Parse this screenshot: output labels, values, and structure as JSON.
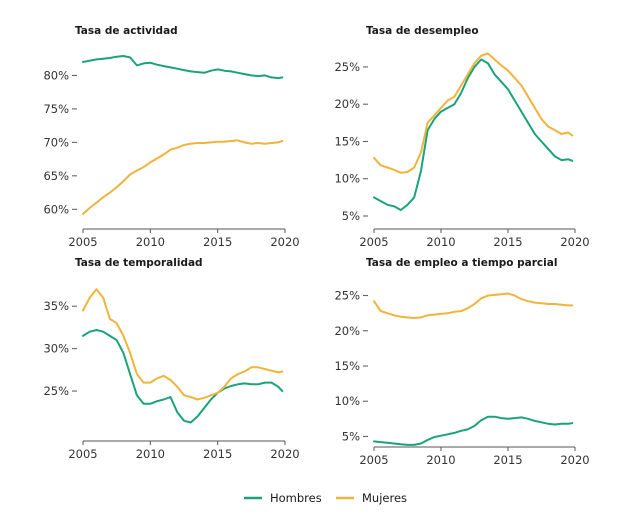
{
  "chart_data": [
    {
      "type": "line",
      "title": "Tasa de actividad",
      "xlim": [
        2005,
        2020
      ],
      "ylim": [
        59,
        83.5
      ],
      "yticks": [
        60,
        65,
        70,
        75,
        80
      ],
      "ytick_labels": [
        "60%",
        "65%",
        "70%",
        "75%",
        "80%"
      ],
      "xticks": [
        2005,
        2010,
        2015,
        2020
      ],
      "xtick_labels": [
        "2005",
        "2010",
        "2015",
        "2020"
      ],
      "series": [
        {
          "name": "Hombres",
          "color": "#1aa37a",
          "x": [
            2005.0,
            2005.5,
            2006.0,
            2006.5,
            2007.0,
            2007.5,
            2008.0,
            2008.5,
            2009.0,
            2009.5,
            2010.0,
            2010.5,
            2011.0,
            2011.5,
            2012.0,
            2012.5,
            2013.0,
            2013.5,
            2014.0,
            2014.5,
            2015.0,
            2015.5,
            2016.0,
            2016.5,
            2017.0,
            2017.5,
            2018.0,
            2018.5,
            2019.0,
            2019.5,
            2019.8
          ],
          "y": [
            82.0,
            82.2,
            82.4,
            82.5,
            82.6,
            82.8,
            82.9,
            82.7,
            81.5,
            81.8,
            81.9,
            81.6,
            81.4,
            81.2,
            81.0,
            80.8,
            80.6,
            80.5,
            80.4,
            80.7,
            80.9,
            80.7,
            80.6,
            80.4,
            80.2,
            80.0,
            79.9,
            80.0,
            79.7,
            79.6,
            79.7
          ]
        },
        {
          "name": "Mujeres",
          "color": "#f0b43c",
          "x": [
            2005.0,
            2005.5,
            2006.0,
            2006.5,
            2007.0,
            2007.5,
            2008.0,
            2008.5,
            2009.0,
            2009.5,
            2010.0,
            2010.5,
            2011.0,
            2011.5,
            2012.0,
            2012.5,
            2013.0,
            2013.5,
            2014.0,
            2014.5,
            2015.0,
            2015.5,
            2016.0,
            2016.5,
            2017.0,
            2017.5,
            2018.0,
            2018.5,
            2019.0,
            2019.5,
            2019.8
          ],
          "y": [
            59.3,
            60.2,
            61.0,
            61.8,
            62.5,
            63.3,
            64.2,
            65.2,
            65.8,
            66.3,
            67.0,
            67.6,
            68.2,
            68.9,
            69.2,
            69.6,
            69.8,
            69.9,
            69.9,
            70.0,
            70.1,
            70.1,
            70.2,
            70.3,
            70.0,
            69.8,
            69.9,
            69.8,
            69.9,
            70.0,
            70.2
          ]
        }
      ]
    },
    {
      "type": "line",
      "title": "Tasa de desempleo",
      "xlim": [
        2005,
        2020
      ],
      "ylim": [
        5,
        27
      ],
      "yticks": [
        5,
        10,
        15,
        20,
        25
      ],
      "ytick_labels": [
        "5%",
        "10%",
        "15%",
        "20%",
        "25%"
      ],
      "xticks": [
        2005,
        2010,
        2015,
        2020
      ],
      "xtick_labels": [
        "2005",
        "2010",
        "2015",
        "2020"
      ],
      "series": [
        {
          "name": "Hombres",
          "color": "#1aa37a",
          "x": [
            2005.0,
            2005.5,
            2006.0,
            2006.5,
            2007.0,
            2007.5,
            2008.0,
            2008.5,
            2009.0,
            2009.5,
            2010.0,
            2010.5,
            2011.0,
            2011.5,
            2012.0,
            2012.5,
            2013.0,
            2013.5,
            2014.0,
            2014.5,
            2015.0,
            2015.5,
            2016.0,
            2016.5,
            2017.0,
            2017.5,
            2018.0,
            2018.5,
            2019.0,
            2019.5,
            2019.8
          ],
          "y": [
            7.5,
            7.0,
            6.5,
            6.3,
            5.8,
            6.5,
            7.5,
            11.0,
            16.5,
            18.0,
            19.0,
            19.5,
            20.0,
            21.5,
            23.5,
            25.0,
            26.0,
            25.5,
            24.0,
            23.0,
            22.0,
            20.5,
            19.0,
            17.5,
            16.0,
            15.0,
            14.0,
            13.0,
            12.5,
            12.6,
            12.4
          ]
        },
        {
          "name": "Mujeres",
          "color": "#f0b43c",
          "x": [
            2005.0,
            2005.5,
            2006.0,
            2006.5,
            2007.0,
            2007.5,
            2008.0,
            2008.5,
            2009.0,
            2009.5,
            2010.0,
            2010.5,
            2011.0,
            2011.5,
            2012.0,
            2012.5,
            2013.0,
            2013.5,
            2014.0,
            2014.5,
            2015.0,
            2015.5,
            2016.0,
            2016.5,
            2017.0,
            2017.5,
            2018.0,
            2018.5,
            2019.0,
            2019.5,
            2019.8
          ],
          "y": [
            12.8,
            11.8,
            11.5,
            11.2,
            10.8,
            10.9,
            11.5,
            13.5,
            17.5,
            18.5,
            19.5,
            20.5,
            21.0,
            22.5,
            24.0,
            25.5,
            26.5,
            26.8,
            26.0,
            25.2,
            24.5,
            23.5,
            22.5,
            21.0,
            19.5,
            18.0,
            17.0,
            16.5,
            16.0,
            16.2,
            15.8
          ]
        }
      ]
    },
    {
      "type": "line",
      "title": "Tasa de temporalidad",
      "xlim": [
        2005,
        2020
      ],
      "ylim": [
        21,
        37.5
      ],
      "yticks": [
        25,
        30,
        35
      ],
      "ytick_labels": [
        "25%",
        "30%",
        "35%"
      ],
      "xticks": [
        2005,
        2010,
        2015,
        2020
      ],
      "xtick_labels": [
        "2005",
        "2010",
        "2015",
        "2020"
      ],
      "series": [
        {
          "name": "Hombres",
          "color": "#1aa37a",
          "x": [
            2005.0,
            2005.5,
            2006.0,
            2006.5,
            2007.0,
            2007.5,
            2008.0,
            2008.5,
            2009.0,
            2009.5,
            2010.0,
            2010.5,
            2011.0,
            2011.5,
            2012.0,
            2012.5,
            2013.0,
            2013.5,
            2014.0,
            2014.5,
            2015.0,
            2015.5,
            2016.0,
            2016.5,
            2017.0,
            2017.5,
            2018.0,
            2018.5,
            2019.0,
            2019.5,
            2019.8
          ],
          "y": [
            31.5,
            32.0,
            32.2,
            32.0,
            31.5,
            31.0,
            29.5,
            27.0,
            24.5,
            23.5,
            23.5,
            23.8,
            24.0,
            24.3,
            22.5,
            21.5,
            21.3,
            22.0,
            23.0,
            24.0,
            24.8,
            25.3,
            25.6,
            25.8,
            25.9,
            25.8,
            25.8,
            26.0,
            26.0,
            25.5,
            25.0
          ]
        },
        {
          "name": "Mujeres",
          "color": "#f0b43c",
          "x": [
            2005.0,
            2005.5,
            2006.0,
            2006.5,
            2007.0,
            2007.5,
            2008.0,
            2008.5,
            2009.0,
            2009.5,
            2010.0,
            2010.5,
            2011.0,
            2011.5,
            2012.0,
            2012.5,
            2013.0,
            2013.5,
            2014.0,
            2014.5,
            2015.0,
            2015.5,
            2016.0,
            2016.5,
            2017.0,
            2017.5,
            2018.0,
            2018.5,
            2019.0,
            2019.5,
            2019.8
          ],
          "y": [
            34.5,
            36.0,
            37.0,
            36.0,
            33.5,
            33.0,
            31.5,
            29.5,
            27.0,
            26.0,
            26.0,
            26.5,
            26.8,
            26.3,
            25.5,
            24.5,
            24.3,
            24.0,
            24.2,
            24.5,
            24.8,
            25.5,
            26.5,
            27.0,
            27.3,
            27.8,
            27.8,
            27.6,
            27.4,
            27.2,
            27.3
          ]
        }
      ]
    },
    {
      "type": "line",
      "title": "Tasa de empleo a tiempo parcial",
      "xlim": [
        2005,
        2020
      ],
      "ylim": [
        3.5,
        26.5
      ],
      "yticks": [
        5,
        10,
        15,
        20,
        25
      ],
      "ytick_labels": [
        "5%",
        "10%",
        "15%",
        "20%",
        "25%"
      ],
      "xticks": [
        2005,
        2010,
        2015,
        2020
      ],
      "xtick_labels": [
        "2005",
        "2010",
        "2015",
        "2020"
      ],
      "series": [
        {
          "name": "Hombres",
          "color": "#1aa37a",
          "x": [
            2005.0,
            2005.5,
            2006.0,
            2006.5,
            2007.0,
            2007.5,
            2008.0,
            2008.5,
            2009.0,
            2009.5,
            2010.0,
            2010.5,
            2011.0,
            2011.5,
            2012.0,
            2012.5,
            2013.0,
            2013.5,
            2014.0,
            2014.5,
            2015.0,
            2015.5,
            2016.0,
            2016.5,
            2017.0,
            2017.5,
            2018.0,
            2018.5,
            2019.0,
            2019.5,
            2019.8
          ],
          "y": [
            4.3,
            4.2,
            4.1,
            4.0,
            3.9,
            3.8,
            3.8,
            4.0,
            4.5,
            4.9,
            5.1,
            5.3,
            5.5,
            5.8,
            6.0,
            6.5,
            7.3,
            7.8,
            7.8,
            7.6,
            7.5,
            7.6,
            7.7,
            7.5,
            7.2,
            7.0,
            6.8,
            6.7,
            6.8,
            6.8,
            6.9
          ]
        },
        {
          "name": "Mujeres",
          "color": "#f0b43c",
          "x": [
            2005.0,
            2005.5,
            2006.0,
            2006.5,
            2007.0,
            2007.5,
            2008.0,
            2008.5,
            2009.0,
            2009.5,
            2010.0,
            2010.5,
            2011.0,
            2011.5,
            2012.0,
            2012.5,
            2013.0,
            2013.5,
            2014.0,
            2014.5,
            2015.0,
            2015.5,
            2016.0,
            2016.5,
            2017.0,
            2017.5,
            2018.0,
            2018.5,
            2019.0,
            2019.5,
            2019.8
          ],
          "y": [
            24.2,
            22.8,
            22.5,
            22.2,
            22.0,
            21.9,
            21.8,
            21.9,
            22.2,
            22.3,
            22.4,
            22.5,
            22.7,
            22.8,
            23.2,
            23.8,
            24.6,
            25.0,
            25.1,
            25.2,
            25.3,
            25.0,
            24.5,
            24.2,
            24.0,
            23.9,
            23.8,
            23.8,
            23.7,
            23.6,
            23.6
          ]
        }
      ]
    }
  ],
  "legend": {
    "position": "bottom-center",
    "items": [
      {
        "label": "Hombres",
        "color": "#1aa37a"
      },
      {
        "label": "Mujeres",
        "color": "#f0b43c"
      }
    ]
  }
}
